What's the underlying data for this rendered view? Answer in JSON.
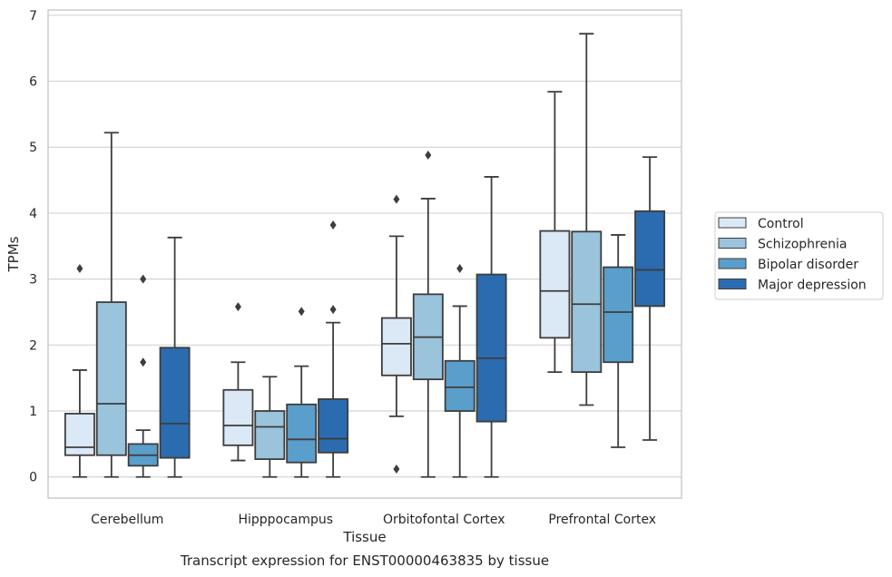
{
  "chart_data": {
    "type": "box",
    "caption": "Transcript expression for ENST00000463835 by tissue",
    "xlabel": "Tissue",
    "ylabel": "TPMs",
    "ylim": [
      -0.32,
      7.08
    ],
    "yticks": [
      0,
      1,
      2,
      3,
      4,
      5,
      6,
      7
    ],
    "grid": "horizontal",
    "legend_position": "right",
    "categories": [
      "Cerebellum",
      "Hipppocampus",
      "Orbitofontal Cortex",
      "Prefrontal Cortex"
    ],
    "series": [
      {
        "name": "Control",
        "color": "#dbe8f5",
        "boxes": [
          {
            "whisker_low": 0.0,
            "q1": 0.33,
            "median": 0.45,
            "q3": 0.96,
            "whisker_high": 1.62,
            "outliers": [
              3.16
            ]
          },
          {
            "whisker_low": 0.25,
            "q1": 0.48,
            "median": 0.78,
            "q3": 1.32,
            "whisker_high": 1.74,
            "outliers": [
              2.58
            ]
          },
          {
            "whisker_low": 0.92,
            "q1": 1.54,
            "median": 2.02,
            "q3": 2.41,
            "whisker_high": 3.65,
            "outliers": [
              4.21,
              0.12
            ]
          },
          {
            "whisker_low": 1.59,
            "q1": 2.11,
            "median": 2.82,
            "q3": 3.73,
            "whisker_high": 5.84,
            "outliers": []
          }
        ]
      },
      {
        "name": "Schizophrenia",
        "color": "#9ac3dc",
        "boxes": [
          {
            "whisker_low": 0.0,
            "q1": 0.33,
            "median": 1.11,
            "q3": 2.65,
            "whisker_high": 5.22,
            "outliers": []
          },
          {
            "whisker_low": 0.0,
            "q1": 0.27,
            "median": 0.76,
            "q3": 1.0,
            "whisker_high": 1.52,
            "outliers": []
          },
          {
            "whisker_low": 0.0,
            "q1": 1.48,
            "median": 2.12,
            "q3": 2.77,
            "whisker_high": 4.22,
            "outliers": [
              4.88
            ]
          },
          {
            "whisker_low": 1.09,
            "q1": 1.59,
            "median": 2.62,
            "q3": 3.72,
            "whisker_high": 6.72,
            "outliers": []
          }
        ]
      },
      {
        "name": "Bipolar disorder",
        "color": "#5a9ecb",
        "boxes": [
          {
            "whisker_low": 0.0,
            "q1": 0.17,
            "median": 0.33,
            "q3": 0.5,
            "whisker_high": 0.71,
            "outliers": [
              1.74,
              3.0
            ]
          },
          {
            "whisker_low": 0.0,
            "q1": 0.22,
            "median": 0.57,
            "q3": 1.1,
            "whisker_high": 1.68,
            "outliers": [
              2.51
            ]
          },
          {
            "whisker_low": 0.0,
            "q1": 1.0,
            "median": 1.36,
            "q3": 1.76,
            "whisker_high": 2.59,
            "outliers": [
              3.16
            ]
          },
          {
            "whisker_low": 0.45,
            "q1": 1.74,
            "median": 2.5,
            "q3": 3.18,
            "whisker_high": 3.67,
            "outliers": []
          }
        ]
      },
      {
        "name": "Major depression",
        "color": "#2b6cb0",
        "boxes": [
          {
            "whisker_low": 0.0,
            "q1": 0.29,
            "median": 0.81,
            "q3": 1.96,
            "whisker_high": 3.63,
            "outliers": []
          },
          {
            "whisker_low": 0.0,
            "q1": 0.37,
            "median": 0.58,
            "q3": 1.18,
            "whisker_high": 2.34,
            "outliers": [
              2.54,
              3.82
            ]
          },
          {
            "whisker_low": 0.0,
            "q1": 0.84,
            "median": 1.8,
            "q3": 3.07,
            "whisker_high": 4.55,
            "outliers": []
          },
          {
            "whisker_low": 0.56,
            "q1": 2.59,
            "median": 3.14,
            "q3": 4.03,
            "whisker_high": 4.85,
            "outliers": []
          }
        ]
      }
    ]
  }
}
